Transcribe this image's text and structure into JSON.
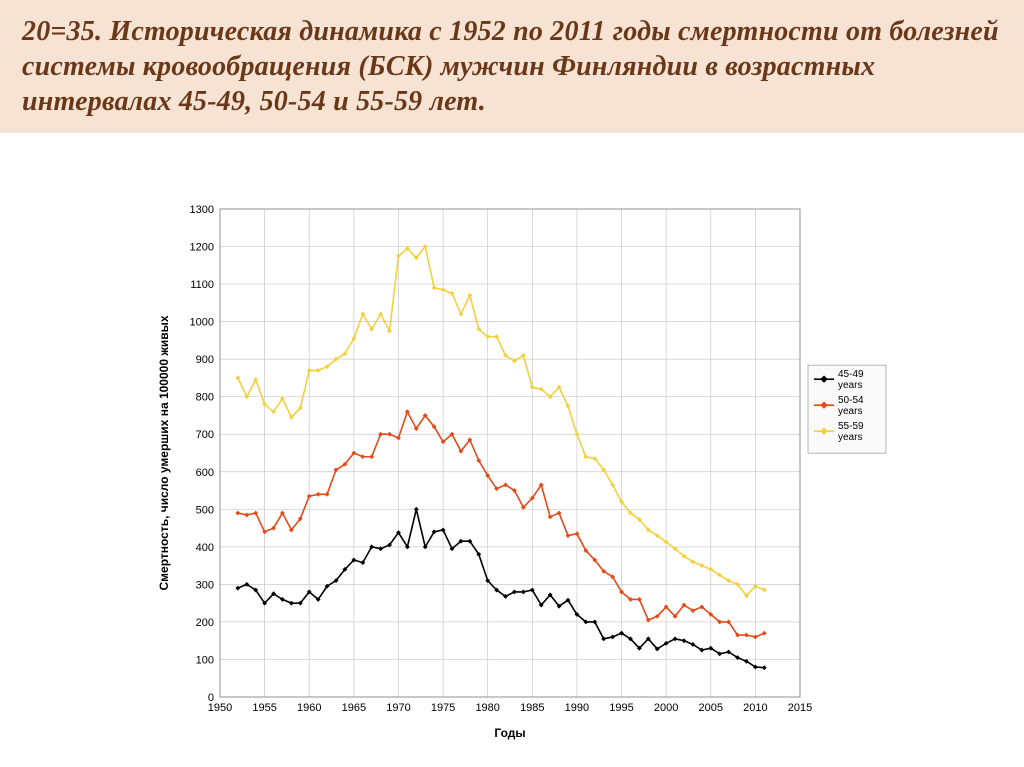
{
  "slide": {
    "title": "20=35. Историческая динамика с 1952 по 2011 годы смертности от болезней системы кровообращения (БСК) мужчин Финляндии в возрастных интервалах 45-49, 50-54 и 55-59 лет.",
    "title_color": "#6a3818",
    "title_bg": "#f7e3d3",
    "title_font_family": "Times New Roman",
    "title_font_style": "italic",
    "title_font_weight": "bold",
    "title_fontsize": 28
  },
  "chart": {
    "type": "line",
    "background_color": "#ffffff",
    "grid_color": "#c9c9c9",
    "border_color": "#808080",
    "xlabel": "Годы",
    "ylabel": "Смертность, число умерших на 100000 живых",
    "label_fontsize": 12,
    "label_fontweight": "bold",
    "tick_fontsize": 11,
    "xlim": [
      1950,
      2015
    ],
    "ylim": [
      0,
      1300
    ],
    "xtick_step": 5,
    "ytick_step": 100,
    "xticks": [
      1950,
      1955,
      1960,
      1965,
      1970,
      1975,
      1980,
      1985,
      1990,
      1995,
      2000,
      2005,
      2010,
      2015
    ],
    "yticks": [
      0,
      100,
      200,
      300,
      400,
      500,
      600,
      700,
      800,
      900,
      1000,
      1100,
      1200,
      1300
    ],
    "marker_size": 2.0,
    "line_width": 1.6,
    "legend": {
      "position": "right",
      "bg": "#fafafa",
      "border_color": "#888",
      "fontsize": 10,
      "items": [
        {
          "label": "45-49 years",
          "color": "#000000",
          "marker": "diamond"
        },
        {
          "label": "50-54 years",
          "color": "#e34a1a",
          "marker": "diamond"
        },
        {
          "label": "55-59 years",
          "color": "#f3d03e",
          "marker": "diamond"
        }
      ]
    },
    "series": [
      {
        "name": "45-49 years",
        "color": "#000000",
        "marker": "diamond",
        "years": [
          1952,
          1953,
          1954,
          1955,
          1956,
          1957,
          1958,
          1959,
          1960,
          1961,
          1962,
          1963,
          1964,
          1965,
          1966,
          1967,
          1968,
          1969,
          1970,
          1971,
          1972,
          1973,
          1974,
          1975,
          1976,
          1977,
          1978,
          1979,
          1980,
          1981,
          1982,
          1983,
          1984,
          1985,
          1986,
          1987,
          1988,
          1989,
          1990,
          1991,
          1992,
          1993,
          1994,
          1995,
          1996,
          1997,
          1998,
          1999,
          2000,
          2001,
          2002,
          2003,
          2004,
          2005,
          2006,
          2007,
          2008,
          2009,
          2010,
          2011
        ],
        "values": [
          290,
          300,
          285,
          250,
          275,
          260,
          250,
          250,
          280,
          260,
          295,
          310,
          340,
          365,
          358,
          400,
          395,
          405,
          438,
          400,
          500,
          400,
          440,
          445,
          395,
          415,
          415,
          380,
          310,
          285,
          268,
          280,
          280,
          285,
          245,
          272,
          242,
          258,
          220,
          200,
          200,
          155,
          160,
          170,
          155,
          130,
          155,
          128,
          143,
          155,
          150,
          140,
          125,
          130,
          115,
          120,
          105,
          95,
          80,
          78
        ]
      },
      {
        "name": "50-54 years",
        "color": "#e34a1a",
        "marker": "diamond",
        "years": [
          1952,
          1953,
          1954,
          1955,
          1956,
          1957,
          1958,
          1959,
          1960,
          1961,
          1962,
          1963,
          1964,
          1965,
          1966,
          1967,
          1968,
          1969,
          1970,
          1971,
          1972,
          1973,
          1974,
          1975,
          1976,
          1977,
          1978,
          1979,
          1980,
          1981,
          1982,
          1983,
          1984,
          1985,
          1986,
          1987,
          1988,
          1989,
          1990,
          1991,
          1992,
          1993,
          1994,
          1995,
          1996,
          1997,
          1998,
          1999,
          2000,
          2001,
          2002,
          2003,
          2004,
          2005,
          2006,
          2007,
          2008,
          2009,
          2010,
          2011
        ],
        "values": [
          490,
          485,
          490,
          440,
          450,
          490,
          445,
          475,
          535,
          540,
          540,
          605,
          620,
          650,
          640,
          640,
          700,
          700,
          690,
          760,
          715,
          750,
          720,
          680,
          700,
          655,
          685,
          630,
          590,
          555,
          565,
          550,
          505,
          530,
          565,
          480,
          490,
          430,
          435,
          390,
          365,
          335,
          320,
          280,
          260,
          260,
          205,
          215,
          240,
          215,
          245,
          230,
          240,
          220,
          200,
          200,
          165,
          165,
          160,
          170
        ]
      },
      {
        "name": "55-59 years",
        "color": "#f3d03e",
        "marker": "diamond",
        "years": [
          1952,
          1953,
          1954,
          1955,
          1956,
          1957,
          1958,
          1959,
          1960,
          1961,
          1962,
          1963,
          1964,
          1965,
          1966,
          1967,
          1968,
          1969,
          1970,
          1971,
          1972,
          1973,
          1974,
          1975,
          1976,
          1977,
          1978,
          1979,
          1980,
          1981,
          1982,
          1983,
          1984,
          1985,
          1986,
          1987,
          1988,
          1989,
          1990,
          1991,
          1992,
          1993,
          1994,
          1995,
          1996,
          1997,
          1998,
          1999,
          2000,
          2001,
          2002,
          2003,
          2004,
          2005,
          2006,
          2007,
          2008,
          2009,
          2010,
          2011
        ],
        "values": [
          850,
          800,
          845,
          780,
          760,
          795,
          745,
          770,
          870,
          870,
          880,
          900,
          915,
          955,
          1020,
          980,
          1020,
          975,
          1175,
          1195,
          1170,
          1200,
          1090,
          1085,
          1075,
          1020,
          1070,
          980,
          960,
          960,
          910,
          895,
          910,
          825,
          820,
          800,
          825,
          775,
          700,
          640,
          635,
          605,
          565,
          520,
          490,
          473,
          445,
          430,
          413,
          395,
          375,
          360,
          350,
          340,
          325,
          310,
          300,
          270,
          295,
          285
        ]
      }
    ]
  }
}
